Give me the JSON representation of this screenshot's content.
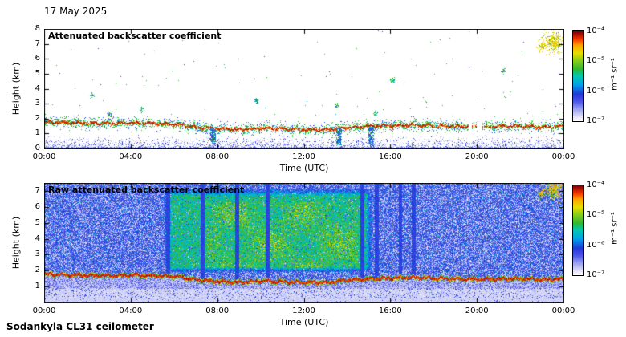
{
  "header": {
    "date": "17 May 2025"
  },
  "footer": {
    "instrument": "Sodankyla CL31 ceilometer"
  },
  "time_axis": {
    "label": "Time (UTC)",
    "tick_labels": [
      "00:00",
      "04:00",
      "08:00",
      "12:00",
      "16:00",
      "20:00",
      "00:00"
    ],
    "tick_hours": [
      0,
      4,
      8,
      12,
      16,
      20,
      24
    ]
  },
  "colorbar": {
    "unit": "m⁻¹ sr⁻¹",
    "scale": "log",
    "tick_labels": [
      "10⁻⁴",
      "10⁻⁵",
      "10⁻⁶",
      "10⁻⁷"
    ],
    "value_range": [
      "1e-7",
      "1e-4"
    ],
    "gradient_stops": [
      [
        0.0,
        "#ffffff"
      ],
      [
        0.05,
        "#dcdcf6"
      ],
      [
        0.13,
        "#9aa2ee"
      ],
      [
        0.22,
        "#4a52e8"
      ],
      [
        0.3,
        "#2238d8"
      ],
      [
        0.4,
        "#00a0e8"
      ],
      [
        0.5,
        "#00c8b4"
      ],
      [
        0.58,
        "#30b830"
      ],
      [
        0.68,
        "#8cd018"
      ],
      [
        0.76,
        "#e8e000"
      ],
      [
        0.85,
        "#ffa000"
      ],
      [
        0.92,
        "#f03000"
      ],
      [
        1.0,
        "#800000"
      ]
    ]
  },
  "chart_data": [
    {
      "type": "heatmap",
      "title": "Attenuated backscatter coefficient",
      "xlabel": "Time (UTC)",
      "ylabel": "Height (km)",
      "xlim_hours": [
        0,
        24
      ],
      "ylim_km": [
        0,
        8
      ],
      "y_ticks": [
        0,
        1,
        2,
        3,
        4,
        5,
        6,
        7,
        8
      ],
      "x_tick_labels": [
        "00:00",
        "04:00",
        "08:00",
        "12:00",
        "16:00",
        "20:00",
        "00:00"
      ],
      "colorbar_tick_labels": [
        "10⁻⁴",
        "10⁻⁵",
        "10⁻⁶",
        "10⁻⁷"
      ],
      "colorbar_unit": "m⁻¹ sr⁻¹",
      "features": {
        "aerosol_layer_hours": [
          0,
          1,
          2,
          3,
          4,
          5,
          6,
          7,
          8,
          9,
          10,
          11,
          12,
          13,
          14,
          15,
          16,
          17,
          18,
          19,
          20,
          21,
          22,
          23,
          24
        ],
        "aerosol_layer_height_km": [
          1.8,
          1.75,
          1.72,
          1.7,
          1.73,
          1.7,
          1.66,
          1.45,
          1.35,
          1.28,
          1.38,
          1.33,
          1.28,
          1.27,
          1.42,
          1.5,
          1.55,
          1.6,
          1.55,
          1.5,
          1.48,
          1.5,
          1.52,
          1.46,
          1.5
        ],
        "layer_gaps_hours": [
          [
            19.6,
            20.3
          ]
        ],
        "surface_noise_top_km": 1.0,
        "subcloud_streaks": [
          {
            "hour": 7.8,
            "depth_km": 0.9
          },
          {
            "hour": 13.6,
            "depth_km": 1.1
          },
          {
            "hour": 15.1,
            "depth_km": 1.4
          }
        ],
        "speckle_clusters": [
          {
            "hour": 2.2,
            "height_km": 3.6
          },
          {
            "hour": 3.0,
            "height_km": 2.3
          },
          {
            "hour": 4.5,
            "height_km": 2.6
          },
          {
            "hour": 9.8,
            "height_km": 3.2
          },
          {
            "hour": 13.5,
            "height_km": 2.9
          },
          {
            "hour": 15.3,
            "height_km": 2.4
          },
          {
            "hour": 16.1,
            "height_km": 4.6
          },
          {
            "hour": 21.2,
            "height_km": 5.2
          }
        ],
        "cloud_patch": {
          "hour_range": [
            22.8,
            23.9
          ],
          "height_km_range": [
            6.4,
            7.8
          ]
        }
      }
    },
    {
      "type": "heatmap",
      "title": "Raw attenuated backscatter coefficient",
      "xlabel": "Time (UTC)",
      "ylabel": "Height (km)",
      "xlim_hours": [
        0,
        24
      ],
      "ylim_km": [
        0,
        7.5
      ],
      "y_ticks": [
        1,
        2,
        3,
        4,
        5,
        6,
        7
      ],
      "x_tick_labels": [
        "00:00",
        "04:00",
        "08:00",
        "12:00",
        "16:00",
        "20:00",
        "00:00"
      ],
      "colorbar_tick_labels": [
        "10⁻⁴",
        "10⁻⁵",
        "10⁻⁶",
        "10⁻⁷"
      ],
      "colorbar_unit": "m⁻¹ sr⁻¹",
      "features": {
        "aerosol_layer_hours": [
          0,
          1,
          2,
          3,
          4,
          5,
          6,
          7,
          8,
          9,
          10,
          11,
          12,
          13,
          14,
          15,
          16,
          17,
          18,
          19,
          20,
          21,
          22,
          23,
          24
        ],
        "aerosol_layer_height_km": [
          1.8,
          1.75,
          1.72,
          1.7,
          1.73,
          1.7,
          1.66,
          1.45,
          1.35,
          1.28,
          1.38,
          1.33,
          1.28,
          1.27,
          1.42,
          1.5,
          1.55,
          1.6,
          1.55,
          1.5,
          1.48,
          1.5,
          1.52,
          1.46,
          1.5
        ],
        "surface_band_top_km": 0.9,
        "enhanced_region": {
          "hour_range": [
            5.5,
            15.2
          ],
          "height_km_range": [
            1.9,
            7.2
          ]
        },
        "strong_region": {
          "hour_range": [
            7.5,
            14.5
          ],
          "height_km_range": [
            2.2,
            6.3
          ]
        },
        "attenuated_stripes_hours": [
          5.7,
          7.3,
          8.9,
          10.3,
          14.7,
          15.35,
          16.45,
          17.05
        ],
        "cloud_patch": {
          "hour_range": [
            22.8,
            23.9
          ],
          "height_km_range": [
            6.4,
            7.8
          ]
        }
      }
    }
  ]
}
